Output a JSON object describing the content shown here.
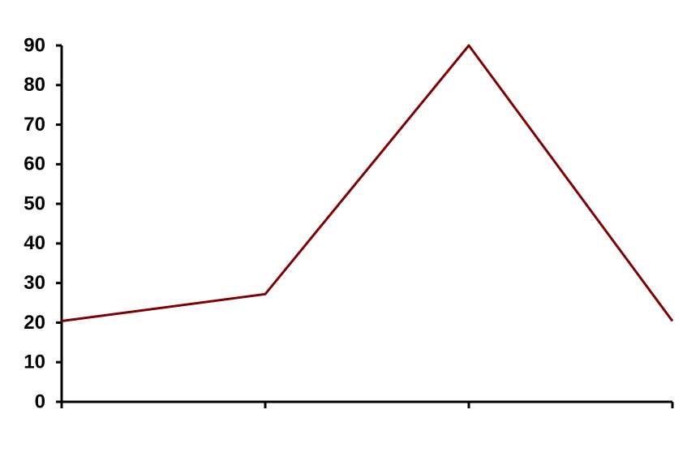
{
  "chart_data": {
    "type": "line",
    "categories": [
      null,
      null,
      null,
      null
    ],
    "series": [
      {
        "color": "#7f0000",
        "values": [
          20.4,
          27.2,
          90,
          20.4
        ]
      }
    ],
    "ylim": [
      0,
      90
    ],
    "yticks": [
      0,
      10,
      20,
      30,
      40,
      50,
      60,
      70,
      80,
      90
    ]
  }
}
